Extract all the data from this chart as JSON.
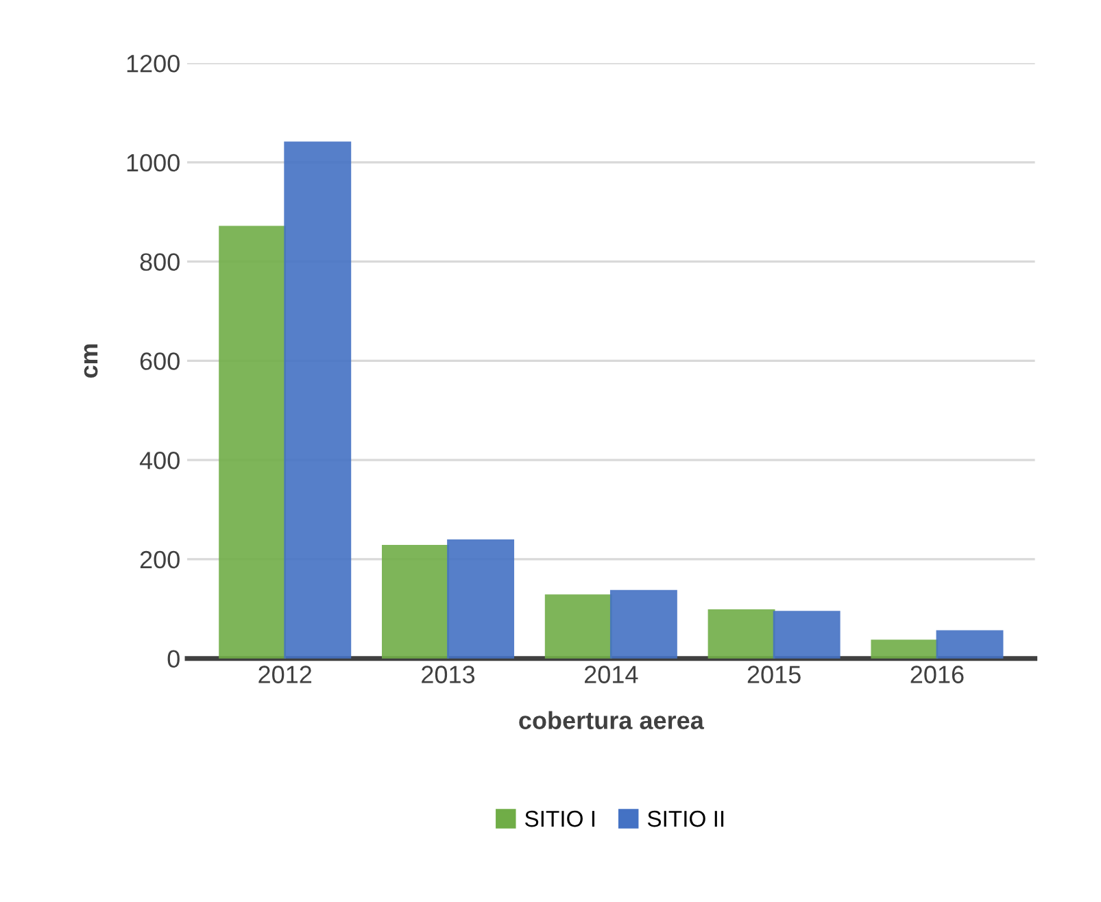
{
  "chart_data": {
    "type": "bar",
    "xlabel": "cobertura aerea",
    "ylabel": "cm",
    "categories": [
      "2012",
      "2013",
      "2014",
      "2015",
      "2016"
    ],
    "series": [
      {
        "name": "SITIO I",
        "color": "#70ad47",
        "values": [
          870,
          227,
          127,
          97,
          36
        ]
      },
      {
        "name": "SITIO II",
        "color": "#4472c4",
        "values": [
          1040,
          238,
          136,
          94,
          55
        ]
      }
    ],
    "ylim": [
      0,
      1200
    ],
    "yticks": [
      0,
      200,
      400,
      600,
      800,
      1000,
      1200
    ],
    "grid": "y",
    "legend": "bottom"
  }
}
